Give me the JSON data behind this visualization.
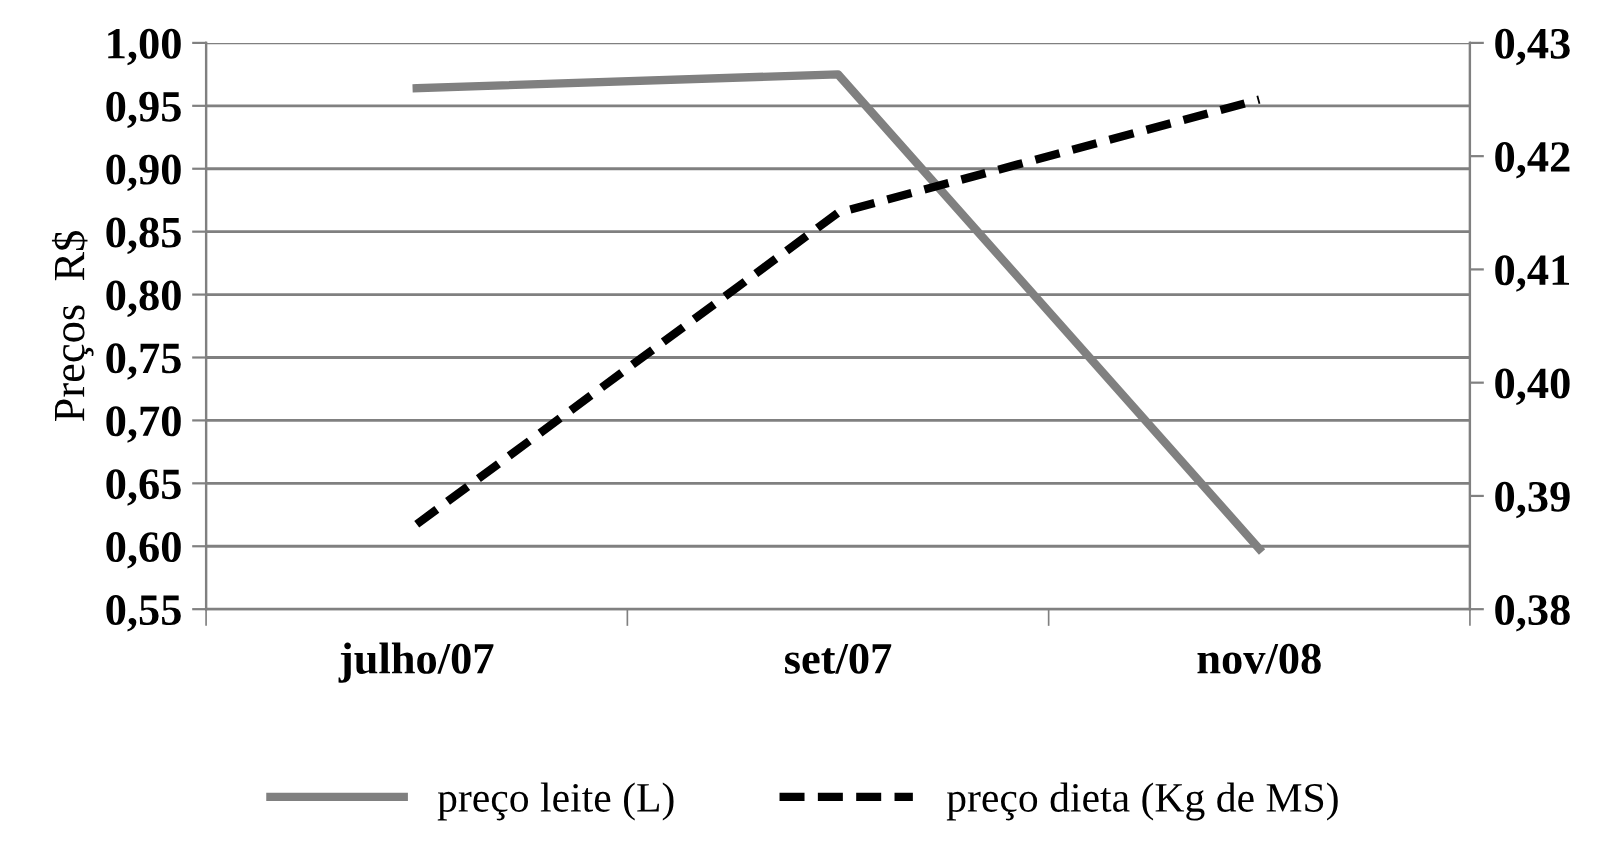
{
  "chart_data": {
    "type": "line",
    "ylabel": "Preços  R$",
    "categories": [
      "julho/07",
      "set/07",
      "nov/08"
    ],
    "series": [
      {
        "name": "preço leite (L)",
        "color": "#808080",
        "values": [
          0.964,
          0.975,
          0.598
        ],
        "line_style": "solid"
      },
      {
        "name": "preço dieta (Kg de MS)",
        "color": "#000000",
        "values": [
          0.3875,
          0.415,
          0.425
        ],
        "line_style": "dashed",
        "axis": "y2"
      }
    ],
    "ylim": [
      0.55,
      1.0
    ],
    "yticks": [
      {
        "value": 0.55,
        "label": "0,55"
      },
      {
        "value": 0.6,
        "label": "0,60"
      },
      {
        "value": 0.65,
        "label": "0,65"
      },
      {
        "value": 0.7,
        "label": "0,70"
      },
      {
        "value": 0.75,
        "label": "0,75"
      },
      {
        "value": 0.8,
        "label": "0,80"
      },
      {
        "value": 0.85,
        "label": "0,85"
      },
      {
        "value": 0.9,
        "label": "0,90"
      },
      {
        "value": 0.95,
        "label": "0,95"
      },
      {
        "value": 1.0,
        "label": "1,00"
      }
    ],
    "y2lim": [
      0.38,
      0.43
    ],
    "y2ticks": [
      {
        "value": 0.38,
        "label": "0,38"
      },
      {
        "value": 0.39,
        "label": "0,39"
      },
      {
        "value": 0.4,
        "label": "0,40"
      },
      {
        "value": 0.41,
        "label": "0,41"
      },
      {
        "value": 0.42,
        "label": "0,42"
      },
      {
        "value": 0.43,
        "label": "0,43"
      }
    ],
    "grid": "y",
    "legend": "bottom",
    "marker": "none"
  }
}
